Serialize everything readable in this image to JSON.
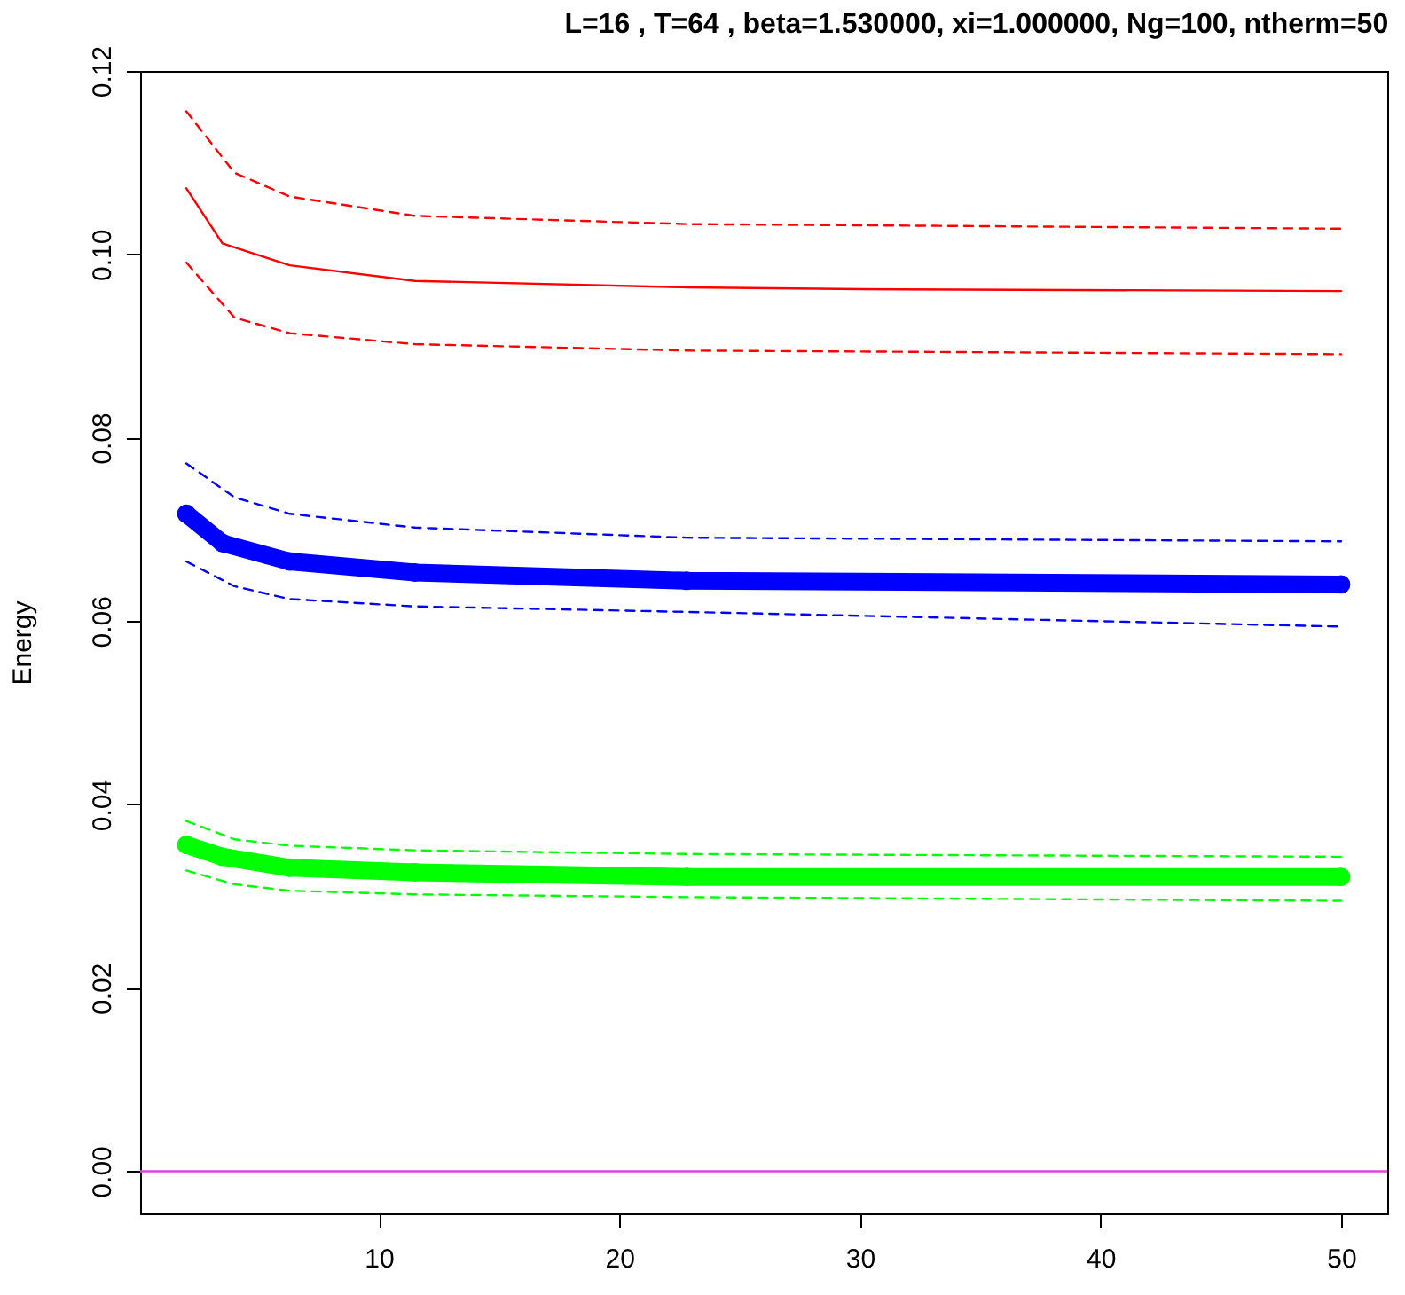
{
  "chart_data": {
    "type": "line",
    "title": "L=16 , T=64 , beta=1.530000, xi=1.000000, Ng=100, ntherm=50",
    "ylabel": "Energy",
    "xlim": [
      0.08,
      51.92
    ],
    "ylim": [
      -0.0046,
      0.12
    ],
    "xticks": [
      10,
      20,
      30,
      40,
      50
    ],
    "yticks": [
      {
        "value": 0,
        "label": "0.00"
      },
      {
        "value": 0.02,
        "label": "0.02"
      },
      {
        "value": 0.04,
        "label": "0.04"
      },
      {
        "value": 0.06,
        "label": "0.06"
      },
      {
        "value": 0.08,
        "label": "0.08"
      },
      {
        "value": 0.1,
        "label": "0.10"
      },
      {
        "value": 0.12,
        "label": "0.12"
      }
    ],
    "grid": false,
    "series": [
      {
        "color": "#ff0000",
        "line_style": "solid",
        "x": [
          2,
          3.5,
          6.3,
          11.5,
          22.8,
          30,
          50
        ],
        "values": [
          0.1072,
          0.1012,
          0.0988,
          0.0971,
          0.0964,
          0.0962,
          0.096
        ]
      },
      {
        "color": "#ff0000",
        "line_style": "dashed",
        "x": [
          2,
          4,
          6.3,
          11.5,
          22.8,
          50
        ],
        "values": [
          0.1156,
          0.1089,
          0.1063,
          0.1042,
          0.1033,
          0.1028
        ]
      },
      {
        "color": "#ff0000",
        "line_style": "dashed",
        "x": [
          2,
          4,
          6.3,
          11.5,
          22.8,
          50
        ],
        "values": [
          0.0991,
          0.0931,
          0.0914,
          0.0902,
          0.0895,
          0.0891
        ]
      },
      {
        "color": "#0000ff",
        "line_style": "solid",
        "marker": "circle",
        "x": [
          2,
          3.5,
          6.3,
          11.5,
          22.8,
          50
        ],
        "values": [
          0.0717,
          0.0685,
          0.0665,
          0.0653,
          0.0644,
          0.064
        ]
      },
      {
        "color": "#0000ff",
        "line_style": "dashed",
        "x": [
          2,
          4,
          6.3,
          11.5,
          22.8,
          50
        ],
        "values": [
          0.0772,
          0.0735,
          0.0717,
          0.0702,
          0.0691,
          0.0687
        ]
      },
      {
        "color": "#0000ff",
        "line_style": "dashed",
        "x": [
          2,
          4,
          6.3,
          11.5,
          22.8,
          50
        ],
        "values": [
          0.0665,
          0.0638,
          0.0624,
          0.0616,
          0.061,
          0.0594
        ]
      },
      {
        "color": "#00ff00",
        "line_style": "solid",
        "marker": "circle",
        "x": [
          2,
          3.5,
          6.3,
          11.5,
          22.8,
          50
        ],
        "values": [
          0.0356,
          0.0343,
          0.0331,
          0.0326,
          0.0321,
          0.0321
        ]
      },
      {
        "color": "#00ff00",
        "line_style": "dashed",
        "x": [
          2,
          4,
          6.3,
          11.5,
          22.8,
          50
        ],
        "values": [
          0.0382,
          0.0362,
          0.0355,
          0.035,
          0.0346,
          0.0343
        ]
      },
      {
        "color": "#00ff00",
        "line_style": "dashed",
        "x": [
          2,
          4,
          6.3,
          11.5,
          22.8,
          50
        ],
        "values": [
          0.0328,
          0.0313,
          0.0306,
          0.0302,
          0.0299,
          0.0295
        ]
      }
    ],
    "ref_lines": [
      {
        "axis": "y",
        "value": 0,
        "color": "#dd44dd"
      }
    ]
  }
}
